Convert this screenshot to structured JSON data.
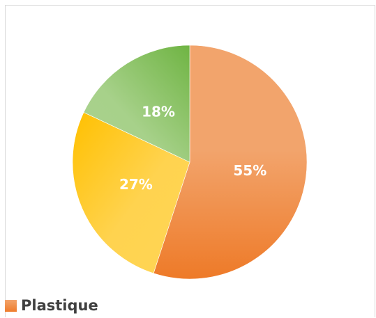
{
  "chart_data": {
    "type": "pie",
    "categories": [
      "",
      "",
      ""
    ],
    "values": [
      55,
      27,
      18
    ],
    "labels": [
      "55%",
      "27%",
      "18%"
    ],
    "colors": [
      "#ef7c2c",
      "#ffc000",
      "#70ad47"
    ],
    "legend": {
      "position": "bottom-left",
      "entries": [
        {
          "label": "Plastique",
          "color": "#ef7c2c"
        }
      ]
    }
  }
}
